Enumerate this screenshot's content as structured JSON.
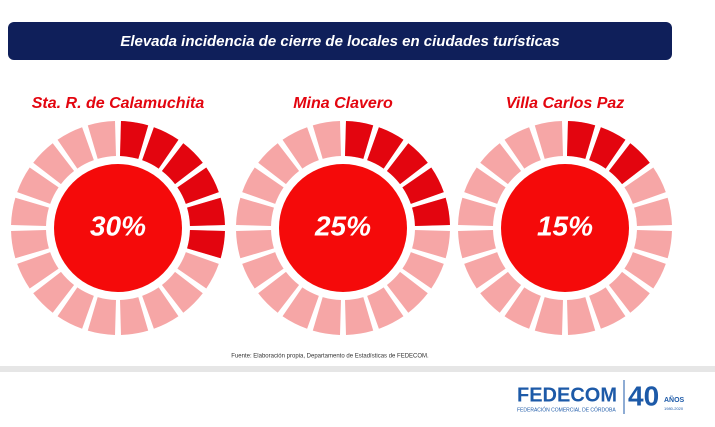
{
  "chart_data": {
    "type": "segmented-donut",
    "title": "Elevada incidencia de cierre de locales en ciudades turísticas",
    "categories": [
      "Sta. R. de Calamuchita",
      "Mina Clavero",
      "Villa Carlos Paz"
    ],
    "values": [
      30,
      25,
      15
    ],
    "value_labels": [
      "30%",
      "25%",
      "15%"
    ],
    "color": "#e3050f",
    "source": "Fuente: Elaboración propia, Departamento de Estadísticas de FEDECOM."
  },
  "footer": {
    "logo": "FEDECOM",
    "tagline": "FEDERACIÓN COMERCIAL DE CÓRDOBA",
    "anniversary": "40",
    "years": "AÑOS",
    "period": "1980-2020"
  }
}
